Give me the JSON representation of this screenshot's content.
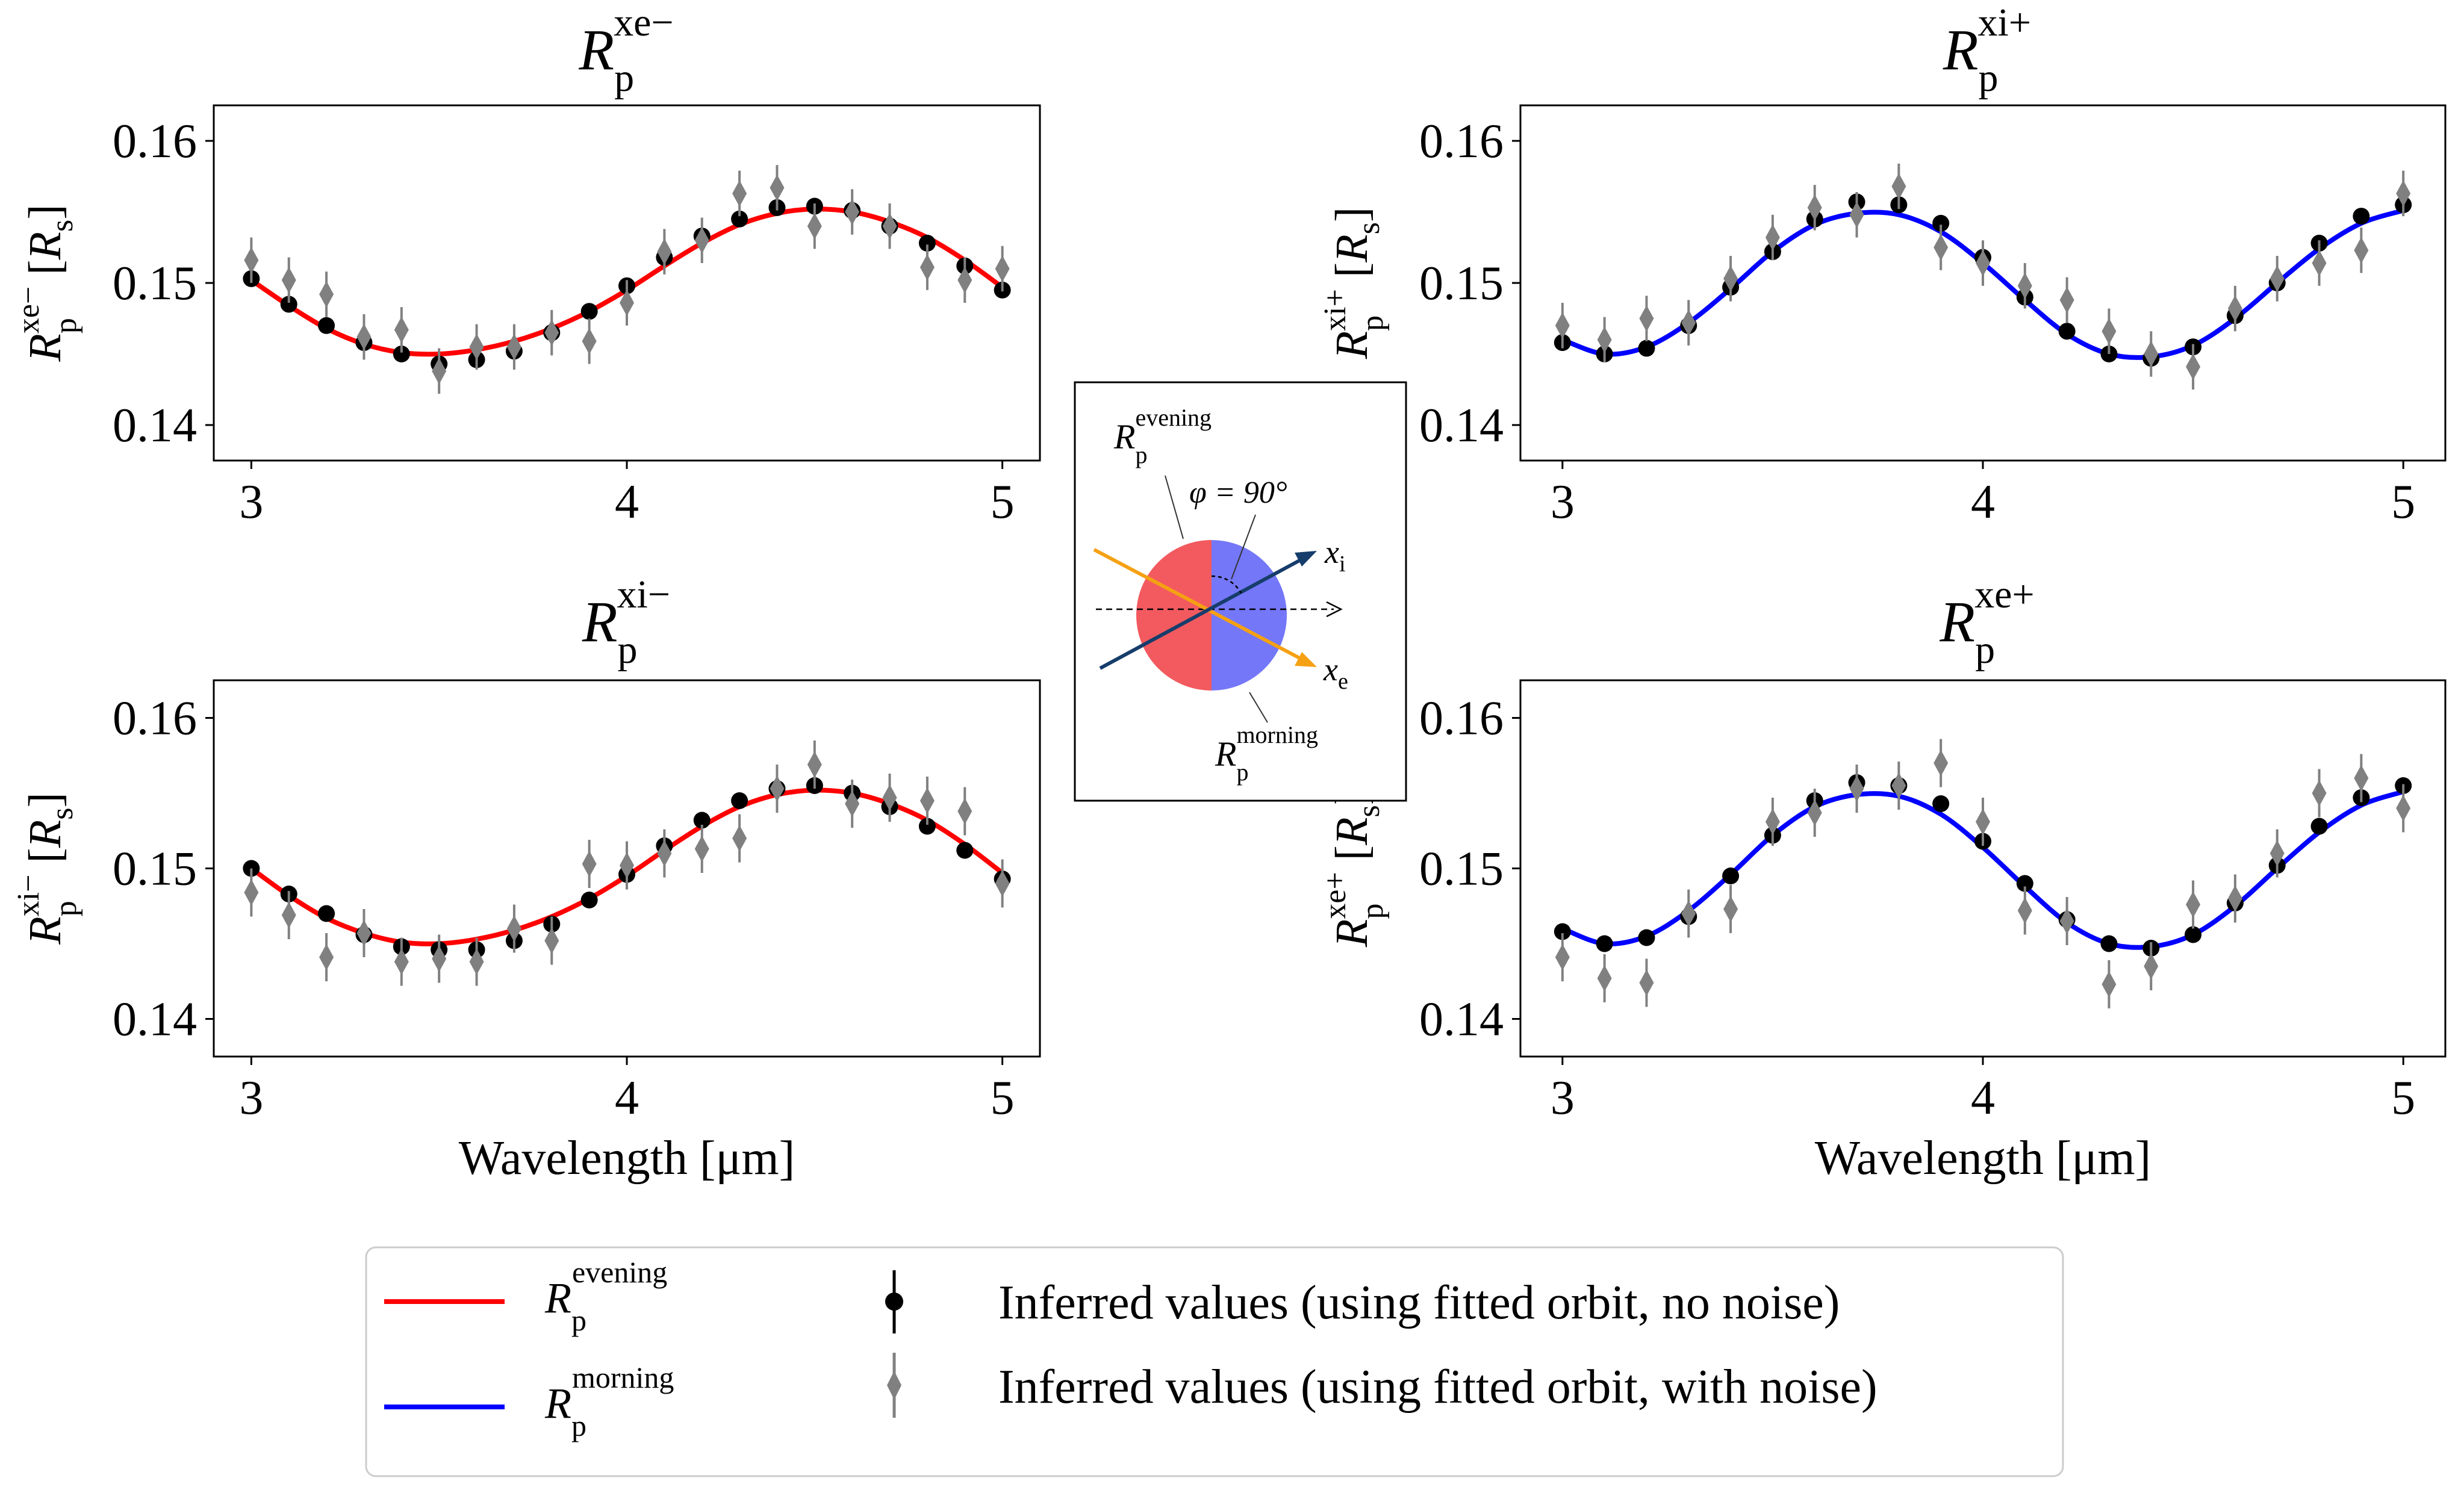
{
  "chart_data": [
    {
      "type": "line",
      "panel": "top-left",
      "title": {
        "base": "R",
        "sub": "p",
        "sup": "xe−"
      },
      "ylabel": {
        "base": "R",
        "sub": "p",
        "sup": "xe−",
        "unit": "[R",
        "unit_sub": "s",
        "unit_close": "]"
      },
      "xlabel": "",
      "xlim": [
        2.9,
        5.1
      ],
      "ylim": [
        0.1375,
        0.1625
      ],
      "xticks": [
        "3",
        "4",
        "5"
      ],
      "yticks": [
        "0.14",
        "0.15",
        "0.16"
      ],
      "line_color": "#ff0000",
      "x": [
        3.0,
        3.1,
        3.2,
        3.3,
        3.4,
        3.5,
        3.6,
        3.7,
        3.8,
        3.9,
        4.0,
        4.1,
        4.2,
        4.3,
        4.4,
        4.5,
        4.6,
        4.7,
        4.8,
        4.9,
        5.0
      ],
      "curve": [
        0.1502,
        0.1484,
        0.1468,
        0.1457,
        0.1451,
        0.145,
        0.1453,
        0.1459,
        0.1468,
        0.148,
        0.1495,
        0.1512,
        0.1528,
        0.1541,
        0.1549,
        0.1552,
        0.155,
        0.1543,
        0.1532,
        0.1516,
        0.1497
      ],
      "series": [
        {
          "name": "no-noise",
          "values": [
            0.1503,
            0.1485,
            0.147,
            0.1458,
            0.145,
            0.1443,
            0.1446,
            0.1452,
            0.1465,
            0.148,
            0.1498,
            0.1518,
            0.1533,
            0.1545,
            0.1553,
            0.1554,
            0.1551,
            0.154,
            0.1528,
            0.1512,
            0.1495
          ],
          "err": [
            0.0005,
            0.0005,
            0.0005,
            0.0005,
            0.0005,
            0.0005,
            0.0005,
            0.0005,
            0.0005,
            0.0005,
            0.0005,
            0.0005,
            0.0005,
            0.0005,
            0.0005,
            0.0005,
            0.0005,
            0.0005,
            0.0005,
            0.0005,
            0.0005
          ]
        },
        {
          "name": "with-noise",
          "values": [
            0.1516,
            0.1502,
            0.1492,
            0.1462,
            0.1467,
            0.1438,
            0.1455,
            0.1455,
            0.1465,
            0.1459,
            0.1486,
            0.1522,
            0.153,
            0.1563,
            0.1567,
            0.154,
            0.155,
            0.154,
            0.1511,
            0.1502,
            0.151
          ],
          "err": [
            0.0016,
            0.0016,
            0.0016,
            0.0016,
            0.0016,
            0.0016,
            0.0016,
            0.0016,
            0.0016,
            0.0016,
            0.0016,
            0.0016,
            0.0016,
            0.0016,
            0.0016,
            0.0016,
            0.0016,
            0.0016,
            0.0016,
            0.0016,
            0.0016
          ]
        }
      ]
    },
    {
      "type": "line",
      "panel": "top-right",
      "title": {
        "base": "R",
        "sub": "p",
        "sup": "xi+"
      },
      "ylabel": {
        "base": "R",
        "sub": "p",
        "sup": "xi+",
        "unit": "[R",
        "unit_sub": "s",
        "unit_close": "]"
      },
      "xlabel": "",
      "xlim": [
        2.9,
        5.1
      ],
      "ylim": [
        0.1375,
        0.1625
      ],
      "xticks": [
        "3",
        "4",
        "5"
      ],
      "yticks": [
        "0.14",
        "0.15",
        "0.16"
      ],
      "line_color": "#0000ff",
      "x": [
        3.0,
        3.1,
        3.2,
        3.3,
        3.4,
        3.5,
        3.6,
        3.7,
        3.8,
        3.9,
        4.0,
        4.1,
        4.2,
        4.3,
        4.4,
        4.5,
        4.6,
        4.7,
        4.8,
        4.9,
        5.0
      ],
      "curve": [
        0.146,
        0.145,
        0.1455,
        0.1472,
        0.1496,
        0.1522,
        0.1541,
        0.1549,
        0.1548,
        0.1536,
        0.1514,
        0.1488,
        0.1464,
        0.145,
        0.1448,
        0.1456,
        0.1475,
        0.15,
        0.1524,
        0.1542,
        0.1551
      ],
      "series": [
        {
          "name": "no-noise",
          "values": [
            0.1458,
            0.145,
            0.1454,
            0.147,
            0.1497,
            0.1522,
            0.1545,
            0.1557,
            0.1555,
            0.1542,
            0.1518,
            0.149,
            0.1466,
            0.145,
            0.1447,
            0.1455,
            0.1477,
            0.15,
            0.1528,
            0.1547,
            0.1555
          ],
          "err": [
            0.0005,
            0.0005,
            0.0005,
            0.0005,
            0.0005,
            0.0005,
            0.0005,
            0.0005,
            0.0005,
            0.0005,
            0.0005,
            0.0005,
            0.0005,
            0.0005,
            0.0005,
            0.0005,
            0.0005,
            0.0005,
            0.0005,
            0.0005,
            0.0005
          ]
        },
        {
          "name": "with-noise",
          "values": [
            0.147,
            0.146,
            0.1475,
            0.1472,
            0.1503,
            0.1532,
            0.1553,
            0.1548,
            0.1568,
            0.1525,
            0.1514,
            0.1498,
            0.1488,
            0.1466,
            0.145,
            0.1441,
            0.1482,
            0.1503,
            0.1514,
            0.1523,
            0.1563
          ],
          "err": [
            0.0016,
            0.0016,
            0.0016,
            0.0016,
            0.0016,
            0.0016,
            0.0016,
            0.0016,
            0.0016,
            0.0016,
            0.0016,
            0.0016,
            0.0016,
            0.0016,
            0.0016,
            0.0016,
            0.0016,
            0.0016,
            0.0016,
            0.0016,
            0.0016
          ]
        }
      ]
    },
    {
      "type": "line",
      "panel": "bottom-left",
      "title": {
        "base": "R",
        "sub": "p",
        "sup": "xi−"
      },
      "ylabel": {
        "base": "R",
        "sub": "p",
        "sup": "xi−",
        "unit": "[R",
        "unit_sub": "s",
        "unit_close": "]"
      },
      "xlabel": "Wavelength [μm]",
      "xlim": [
        2.9,
        5.1
      ],
      "ylim": [
        0.1375,
        0.1625
      ],
      "xticks": [
        "3",
        "4",
        "5"
      ],
      "yticks": [
        "0.14",
        "0.15",
        "0.16"
      ],
      "line_color": "#ff0000",
      "x": [
        3.0,
        3.1,
        3.2,
        3.3,
        3.4,
        3.5,
        3.6,
        3.7,
        3.8,
        3.9,
        4.0,
        4.1,
        4.2,
        4.3,
        4.4,
        4.5,
        4.6,
        4.7,
        4.8,
        4.9,
        5.0
      ],
      "curve": [
        0.15,
        0.1482,
        0.1467,
        0.1457,
        0.1451,
        0.145,
        0.1453,
        0.1459,
        0.1468,
        0.148,
        0.1495,
        0.1512,
        0.1528,
        0.1541,
        0.1549,
        0.1552,
        0.155,
        0.1543,
        0.1532,
        0.1516,
        0.1497
      ],
      "series": [
        {
          "name": "no-noise",
          "values": [
            0.15,
            0.1483,
            0.147,
            0.1456,
            0.1448,
            0.1446,
            0.1446,
            0.1452,
            0.1463,
            0.1479,
            0.1496,
            0.1515,
            0.1532,
            0.1545,
            0.1553,
            0.1555,
            0.155,
            0.1541,
            0.1528,
            0.1512,
            0.1493
          ],
          "err": [
            0.0005,
            0.0005,
            0.0005,
            0.0005,
            0.0005,
            0.0005,
            0.0005,
            0.0005,
            0.0005,
            0.0005,
            0.0005,
            0.0005,
            0.0005,
            0.0005,
            0.0005,
            0.0005,
            0.0005,
            0.0005,
            0.0005,
            0.0005,
            0.0005
          ]
        },
        {
          "name": "with-noise",
          "values": [
            0.1484,
            0.1469,
            0.1441,
            0.1457,
            0.1438,
            0.144,
            0.1438,
            0.146,
            0.1452,
            0.1503,
            0.1502,
            0.151,
            0.1513,
            0.152,
            0.1553,
            0.1569,
            0.1543,
            0.1547,
            0.1545,
            0.1538,
            0.149
          ],
          "err": [
            0.0016,
            0.0016,
            0.0016,
            0.0016,
            0.0016,
            0.0016,
            0.0016,
            0.0016,
            0.0016,
            0.0016,
            0.0016,
            0.0016,
            0.0016,
            0.0016,
            0.0016,
            0.0016,
            0.0016,
            0.0016,
            0.0016,
            0.0016,
            0.0016
          ]
        }
      ]
    },
    {
      "type": "line",
      "panel": "bottom-right",
      "title": {
        "base": "R",
        "sub": "p",
        "sup": "xe+"
      },
      "ylabel": {
        "base": "R",
        "sub": "p",
        "sup": "xe+",
        "unit": "[R",
        "unit_sub": "s",
        "unit_close": "]"
      },
      "xlabel": "Wavelength [μm]",
      "xlim": [
        2.9,
        5.1
      ],
      "ylim": [
        0.1375,
        0.1625
      ],
      "xticks": [
        "3",
        "4",
        "5"
      ],
      "yticks": [
        "0.14",
        "0.15",
        "0.16"
      ],
      "line_color": "#0000ff",
      "x": [
        3.0,
        3.1,
        3.2,
        3.3,
        3.4,
        3.5,
        3.6,
        3.7,
        3.8,
        3.9,
        4.0,
        4.1,
        4.2,
        4.3,
        4.4,
        4.5,
        4.6,
        4.7,
        4.8,
        4.9,
        5.0
      ],
      "curve": [
        0.146,
        0.145,
        0.1455,
        0.1472,
        0.1496,
        0.1522,
        0.1541,
        0.1549,
        0.1548,
        0.1536,
        0.1514,
        0.1488,
        0.1464,
        0.145,
        0.1448,
        0.1456,
        0.1475,
        0.15,
        0.1524,
        0.1542,
        0.1551
      ],
      "series": [
        {
          "name": "no-noise",
          "values": [
            0.1458,
            0.145,
            0.1454,
            0.1468,
            0.1495,
            0.1522,
            0.1545,
            0.1557,
            0.1555,
            0.1543,
            0.1518,
            0.149,
            0.1466,
            0.145,
            0.1447,
            0.1456,
            0.1477,
            0.1502,
            0.1528,
            0.1547,
            0.1555
          ],
          "err": [
            0.0005,
            0.0005,
            0.0005,
            0.0005,
            0.0005,
            0.0005,
            0.0005,
            0.0005,
            0.0005,
            0.0005,
            0.0005,
            0.0005,
            0.0005,
            0.0005,
            0.0005,
            0.0005,
            0.0005,
            0.0005,
            0.0005,
            0.0005,
            0.0005
          ]
        },
        {
          "name": "with-noise",
          "values": [
            0.1441,
            0.1427,
            0.1424,
            0.147,
            0.1473,
            0.1531,
            0.1537,
            0.1553,
            0.1555,
            0.157,
            0.1531,
            0.1472,
            0.1465,
            0.1423,
            0.1435,
            0.1476,
            0.148,
            0.151,
            0.155,
            0.156,
            0.154
          ],
          "err": [
            0.0016,
            0.0016,
            0.0016,
            0.0016,
            0.0016,
            0.0016,
            0.0016,
            0.0016,
            0.0016,
            0.0016,
            0.0016,
            0.0016,
            0.0016,
            0.0016,
            0.0016,
            0.0016,
            0.0016,
            0.0016,
            0.0016,
            0.0016,
            0.0016
          ]
        }
      ]
    }
  ],
  "inset": {
    "evening_label": {
      "base": "R",
      "sub": "p",
      "sup": "evening"
    },
    "morning_label": {
      "base": "R",
      "sub": "p",
      "sup": "morning"
    },
    "angle_label": "φ = 90°",
    "xi_label": {
      "base": "x",
      "sub": "i"
    },
    "xe_label": {
      "base": "x",
      "sub": "e"
    },
    "colors": {
      "evening": "#f25a5f",
      "morning": "#7477f8",
      "xi": "#163d6b",
      "xe": "#f5a113"
    }
  },
  "legend": {
    "evening": {
      "base": "R",
      "sub": "p",
      "sup": "evening",
      "color": "#ff0000"
    },
    "morning": {
      "base": "R",
      "sub": "p",
      "sup": "morning",
      "color": "#0000ff"
    },
    "no_noise": "Inferred values (using fitted orbit, no noise)",
    "with_noise": "Inferred values (using fitted orbit, with noise)",
    "marker_colors": {
      "no_noise": "#000000",
      "with_noise": "#808080"
    }
  }
}
